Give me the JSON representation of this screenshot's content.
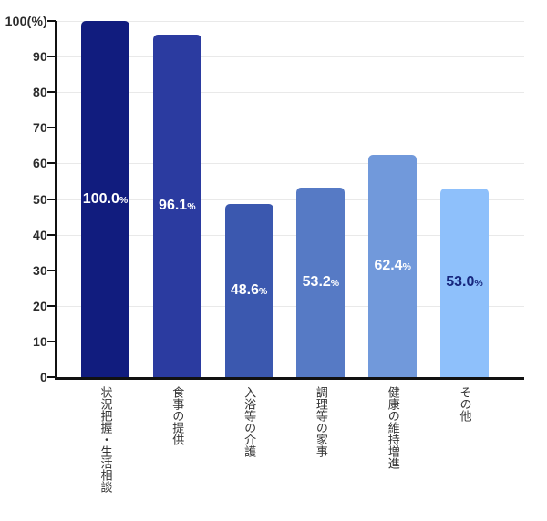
{
  "chart_data": {
    "type": "bar",
    "title": "",
    "xlabel": "",
    "ylabel": "(%)",
    "ylim": [
      0,
      100
    ],
    "grid": true,
    "legend": false,
    "categories": [
      "状況把握・生活相談",
      "食事の提供",
      "入浴等の介護",
      "調理等の家事",
      "健康の維持増進",
      "その他"
    ],
    "values": [
      100.0,
      96.1,
      48.6,
      53.2,
      62.4,
      53.0
    ],
    "value_labels": [
      "100.0",
      "96.1",
      "48.6",
      "53.2",
      "62.4",
      "53.0"
    ],
    "value_label_suffix": "%",
    "bar_colors": [
      "#111c7e",
      "#2b3ba0",
      "#3b58af",
      "#567ac5",
      "#7199db",
      "#8ec0fb"
    ],
    "value_label_colors": [
      "#ffffff",
      "#ffffff",
      "#ffffff",
      "#ffffff",
      "#ffffff",
      "#16267d"
    ],
    "yticks": [
      {
        "value": 0,
        "label": "0"
      },
      {
        "value": 10,
        "label": "10"
      },
      {
        "value": 20,
        "label": "20"
      },
      {
        "value": 30,
        "label": "30"
      },
      {
        "value": 40,
        "label": "40"
      },
      {
        "value": 50,
        "label": "50"
      },
      {
        "value": 60,
        "label": "60"
      },
      {
        "value": 70,
        "label": "70"
      },
      {
        "value": 80,
        "label": "80"
      },
      {
        "value": 90,
        "label": "90"
      },
      {
        "value": 100,
        "label": "100(%)"
      }
    ],
    "colors": {
      "axis": "#111111",
      "grid": "#e9e9e9",
      "tick_label": "#2b2b2b",
      "category_label": "#333333",
      "background": "#ffffff"
    }
  }
}
